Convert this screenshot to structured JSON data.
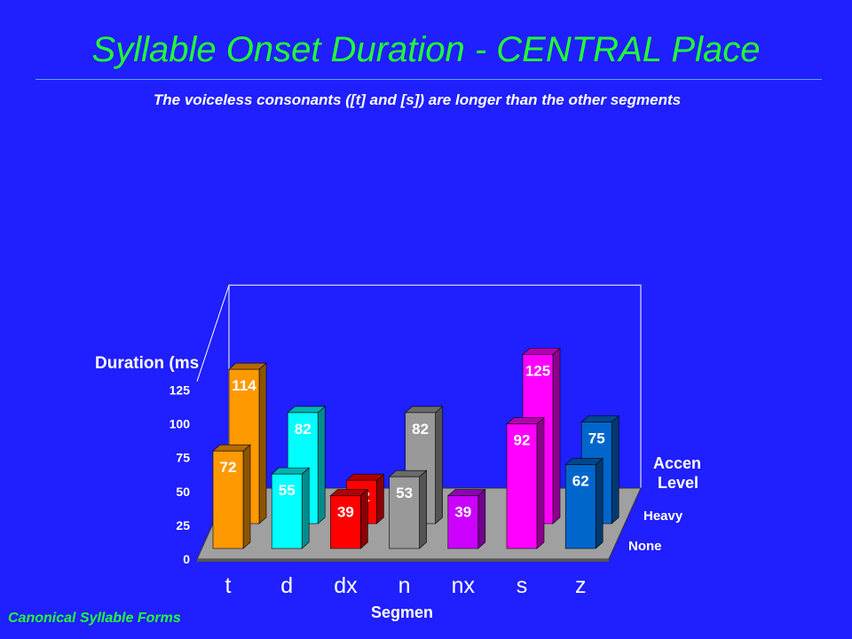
{
  "title": "Syllable Onset Duration - CENTRAL Place",
  "subtitle": "The voiceless consonants ([t] and [s]) are longer than the other segments",
  "footer": "Canonical Syllable Forms",
  "chart_data": {
    "type": "bar",
    "style": "3d-grouped-depth",
    "categories": [
      "t",
      "d",
      "dx",
      "n",
      "nx",
      "s",
      "z"
    ],
    "series": [
      {
        "name": "Heavy",
        "values": [
          114,
          82,
          32,
          82,
          null,
          125,
          75
        ]
      },
      {
        "name": "None",
        "values": [
          72,
          55,
          39,
          53,
          39,
          92,
          62
        ]
      }
    ],
    "colors": [
      "#ff9900",
      "#00ffff",
      "#ff0000",
      "#999999",
      "#cc00ff",
      "#ff00ff",
      "#0066cc"
    ],
    "ylabel": "Duration (ms",
    "xlabel": "Segmen",
    "legend_title": [
      "Accen",
      "Level"
    ],
    "ylim": [
      0,
      125
    ],
    "yticks": [
      0,
      25,
      50,
      75,
      100,
      125
    ],
    "grid": false,
    "legend_position": "right",
    "label_color": "#ffffff",
    "wall_color": "#1f1fff",
    "floor_color": "#a0a0a0"
  }
}
